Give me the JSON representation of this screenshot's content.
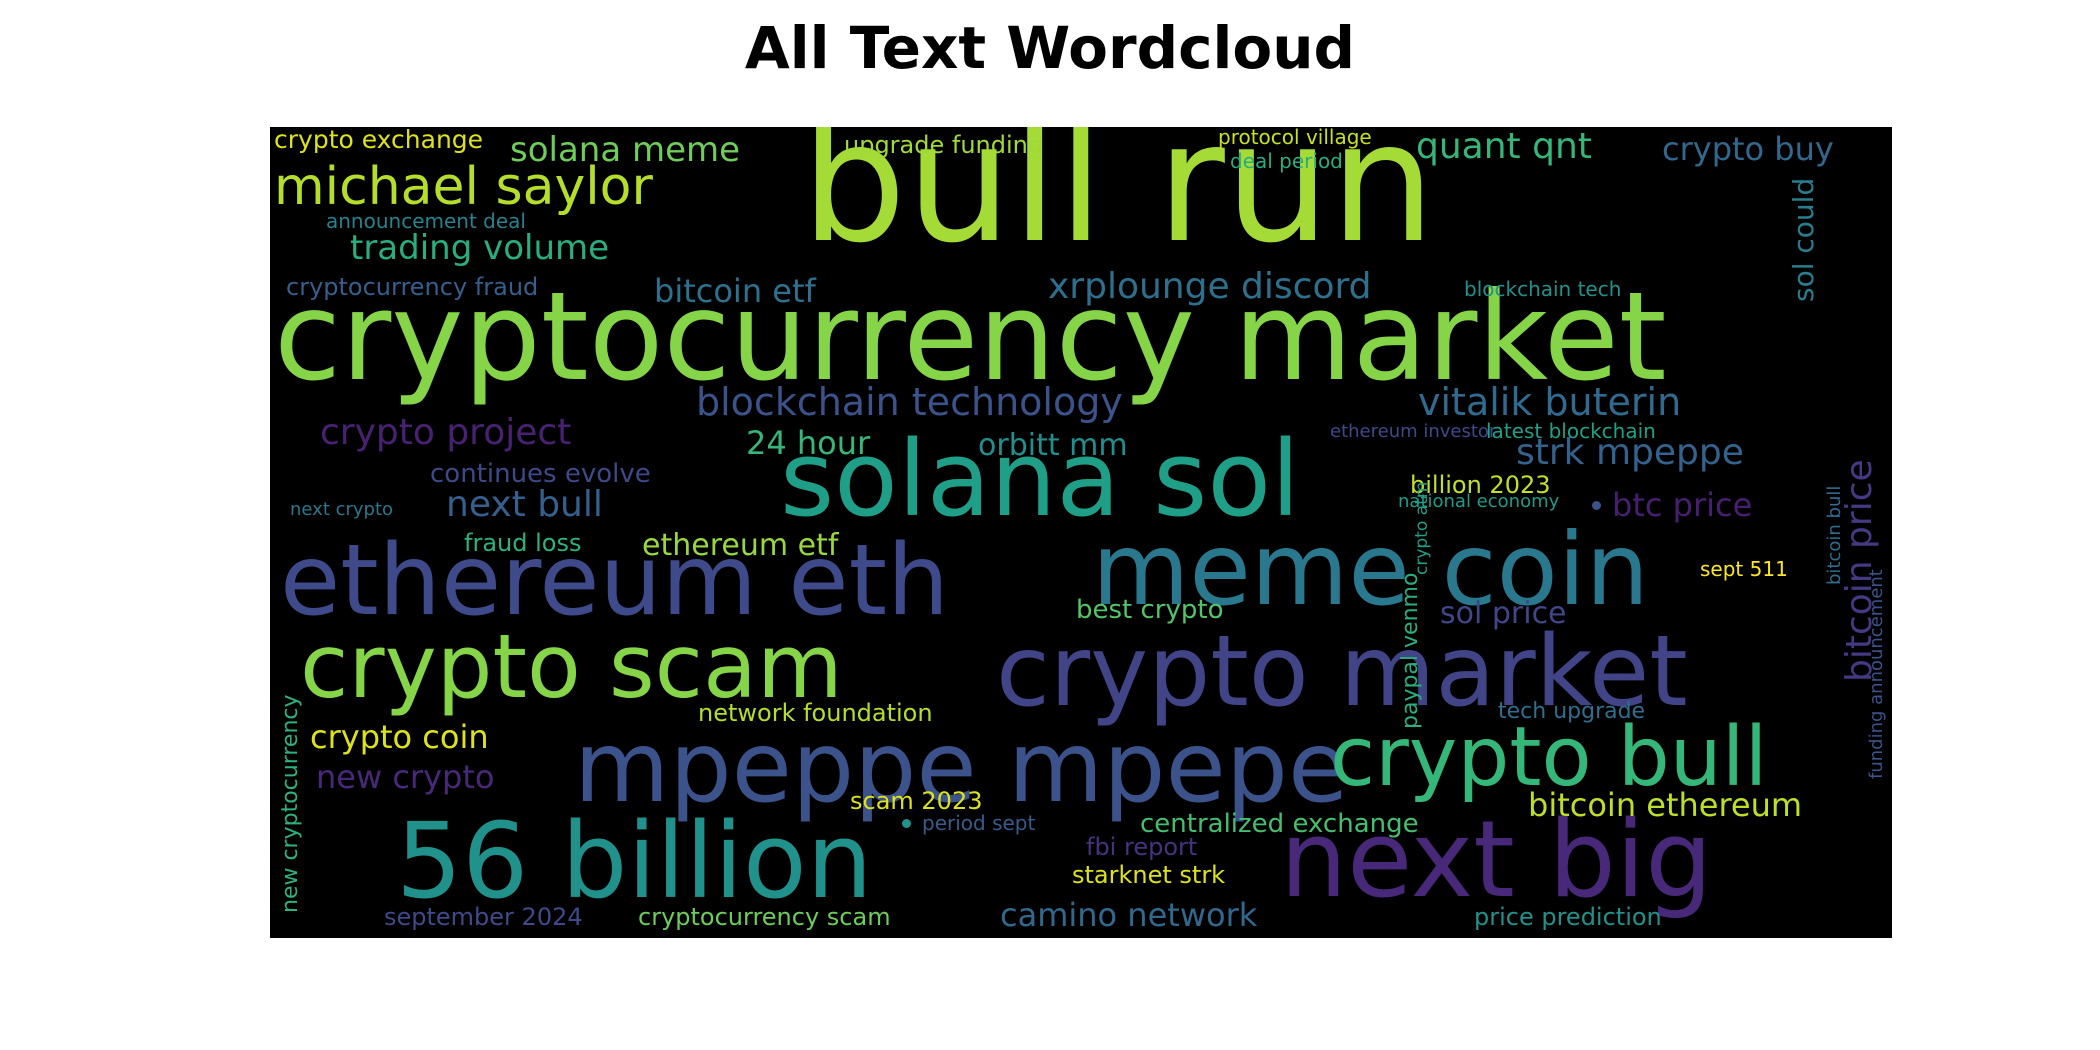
{
  "title": "All Text Wordcloud",
  "words": [
    {
      "text": "bull run",
      "color": "#a5db36"
    },
    {
      "text": "cryptocurrency market",
      "color": "#86d549"
    },
    {
      "text": "solana sol",
      "color": "#1f9f88"
    },
    {
      "text": "meme coin",
      "color": "#2a788e"
    },
    {
      "text": "ethereum eth",
      "color": "#3e4a89"
    },
    {
      "text": "crypto scam",
      "color": "#86d549"
    },
    {
      "text": "crypto market",
      "color": "#414487"
    },
    {
      "text": "mpeppe mpepe",
      "color": "#3b528b"
    },
    {
      "text": "crypto bull",
      "color": "#35b779"
    },
    {
      "text": "56 billion",
      "color": "#21918c"
    },
    {
      "text": "next big",
      "color": "#482878"
    },
    {
      "text": "michael saylor",
      "color": "#b5de2b"
    },
    {
      "text": "solana meme",
      "color": "#6ece58"
    },
    {
      "text": "crypto exchange",
      "color": "#dde318"
    },
    {
      "text": "upgrade funding",
      "color": "#a0da39"
    },
    {
      "text": "protocol village",
      "color": "#c8e020"
    },
    {
      "text": "deal period",
      "color": "#27ad81"
    },
    {
      "text": "quant qnt",
      "color": "#35b779"
    },
    {
      "text": "crypto buy",
      "color": "#31688e"
    },
    {
      "text": "announcement deal",
      "color": "#26828e"
    },
    {
      "text": "trading volume",
      "color": "#29af7f"
    },
    {
      "text": "cryptocurrency fraud",
      "color": "#355f8d"
    },
    {
      "text": "bitcoin etf",
      "color": "#2c718e"
    },
    {
      "text": "xrplounge discord",
      "color": "#2d708e"
    },
    {
      "text": "blockchain tech",
      "color": "#21918c"
    },
    {
      "text": "sol could",
      "color": "#287d8e"
    },
    {
      "text": "blockchain technology",
      "color": "#3b528b"
    },
    {
      "text": "vitalik buterin",
      "color": "#306a8e"
    },
    {
      "text": "bitcoin price",
      "color": "#443983"
    },
    {
      "text": "crypto project",
      "color": "#482173"
    },
    {
      "text": "24 hour",
      "color": "#35b779"
    },
    {
      "text": "orbitt mm",
      "color": "#218f8d"
    },
    {
      "text": "ethereum investor",
      "color": "#3e4989"
    },
    {
      "text": "latest blockchain",
      "color": "#1fa188"
    },
    {
      "text": "strk mpeppe",
      "color": "#33628d"
    },
    {
      "text": "continues evolve",
      "color": "#3e4989"
    },
    {
      "text": "billion 2023",
      "color": "#c2df23"
    },
    {
      "text": "next crypto",
      "color": "#2a788e"
    },
    {
      "text": "next bull",
      "color": "#355f8d"
    },
    {
      "text": "national economy",
      "color": "#1e9b8a"
    },
    {
      "text": "btc price",
      "color": "#481f70"
    },
    {
      "text": "bitcoin bull",
      "color": "#2f6c8e"
    },
    {
      "text": "fraud loss",
      "color": "#2db27d"
    },
    {
      "text": "ethereum etf",
      "color": "#98d83e"
    },
    {
      "text": "crypto atm",
      "color": "#1fa088"
    },
    {
      "text": "funding announcement",
      "color": "#3a538b"
    },
    {
      "text": "sept 511",
      "color": "#fde725"
    },
    {
      "text": "paypal venmo",
      "color": "#29af7f"
    },
    {
      "text": "best crypto",
      "color": "#52c569"
    },
    {
      "text": "sol price",
      "color": "#404688"
    },
    {
      "text": "new cryptocurrency",
      "color": "#2db27d"
    },
    {
      "text": "network foundation",
      "color": "#b5de2b"
    },
    {
      "text": "tech upgrade",
      "color": "#2e6e8e"
    },
    {
      "text": "crypto coin",
      "color": "#dde318"
    },
    {
      "text": "new crypto",
      "color": "#482878"
    },
    {
      "text": "scam 2023",
      "color": "#dde318"
    },
    {
      "text": "bitcoin ethereum",
      "color": "#bddf26"
    },
    {
      "text": "period sept",
      "color": "#365c8d"
    },
    {
      "text": "centralized exchange",
      "color": "#44bf70"
    },
    {
      "text": "fbi report",
      "color": "#46337e"
    },
    {
      "text": "starknet strk",
      "color": "#dde318"
    },
    {
      "text": "september 2024",
      "color": "#3e4a89"
    },
    {
      "text": "cryptocurrency scam",
      "color": "#6ccd5a"
    },
    {
      "text": "camino network",
      "color": "#31688e"
    },
    {
      "text": "price prediction",
      "color": "#20928c"
    }
  ],
  "dots": [
    {
      "color": "#3b528b"
    },
    {
      "color": "#21918c"
    }
  ]
}
